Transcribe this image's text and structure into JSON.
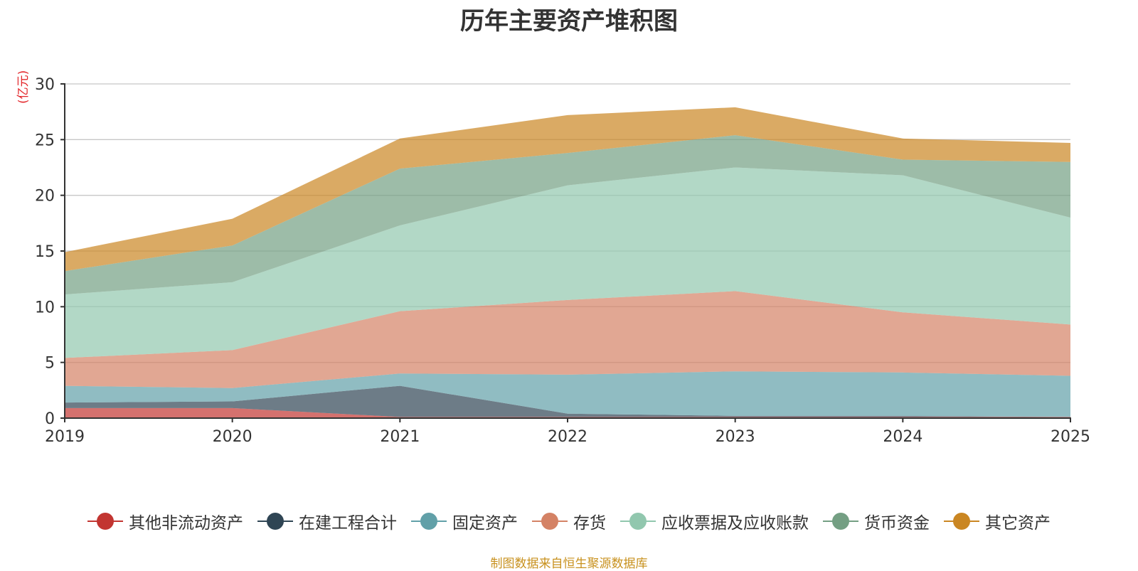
{
  "chart_data": {
    "type": "area",
    "stacked": true,
    "title": "历年主要资产堆积图",
    "unit": "(亿元)",
    "x": [
      "2019",
      "2020",
      "2021",
      "2022",
      "2023",
      "2024",
      "2025"
    ],
    "ylim": [
      0,
      30
    ],
    "yticks": [
      0,
      5,
      10,
      15,
      20,
      25,
      30
    ],
    "grid": true,
    "legend_position": "bottom",
    "series": [
      {
        "name": "其他非流动资产",
        "color": "#c23531",
        "values": [
          0.9,
          0.9,
          0.1,
          0.1,
          0.1,
          0.1,
          0.1
        ]
      },
      {
        "name": "在建工程合计",
        "color": "#2f4554",
        "values": [
          0.5,
          0.6,
          2.8,
          0.3,
          0.1,
          0.1,
          0.0
        ]
      },
      {
        "name": "固定资产",
        "color": "#61a0a8",
        "values": [
          1.5,
          1.2,
          1.1,
          3.5,
          4.0,
          3.9,
          3.7
        ]
      },
      {
        "name": "存货",
        "color": "#d48265",
        "values": [
          2.5,
          3.4,
          5.6,
          6.7,
          7.2,
          5.4,
          4.6
        ]
      },
      {
        "name": "应收票据及应收账款",
        "color": "#91c7ae",
        "values": [
          5.7,
          6.1,
          7.7,
          10.3,
          11.1,
          12.3,
          9.6
        ]
      },
      {
        "name": "货币资金",
        "color": "#749f83",
        "values": [
          2.1,
          3.3,
          5.1,
          2.9,
          2.9,
          1.4,
          5.0
        ]
      },
      {
        "name": "其它资产",
        "color": "#ca8622",
        "values": [
          1.7,
          2.4,
          2.7,
          3.4,
          2.5,
          1.9,
          1.7
        ]
      }
    ]
  },
  "footer": {
    "source_note": "制图数据来自恒生聚源数据库"
  }
}
